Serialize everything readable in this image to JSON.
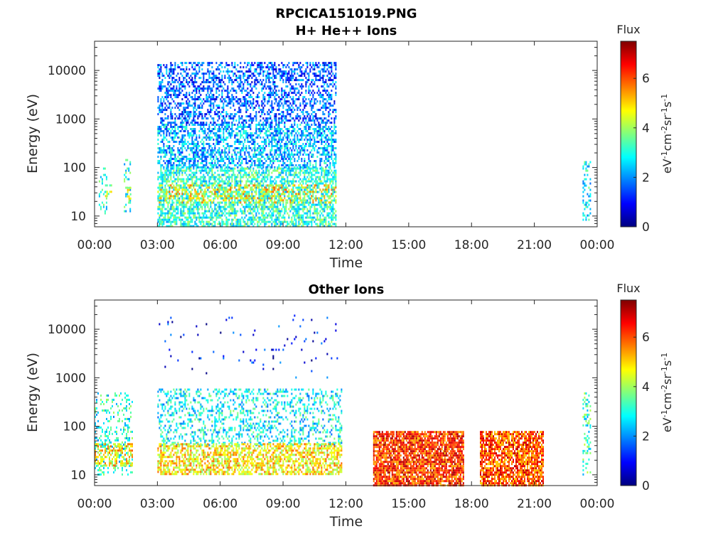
{
  "figure": {
    "title": "RPCICA151019.PNG"
  },
  "colormap": [
    "#00007f",
    "#0000ff",
    "#007fff",
    "#00ffff",
    "#7fff7f",
    "#ffff00",
    "#ff7f00",
    "#ff0000",
    "#7f0000"
  ],
  "chart_data": [
    {
      "type": "heatmap",
      "title": "H+ He++ Ions",
      "xlabel": "Time",
      "ylabel": "Energy (eV)",
      "x_ticks": [
        "00:00",
        "03:00",
        "06:00",
        "09:00",
        "12:00",
        "15:00",
        "18:00",
        "21:00",
        "00:00"
      ],
      "x_range_hours": [
        0,
        24
      ],
      "y_scale": "log",
      "y_ticks": [
        10,
        100,
        1000,
        10000
      ],
      "y_tick_labels": [
        "10",
        "100",
        "1000",
        "10000"
      ],
      "y_range": [
        6,
        40000
      ],
      "colorbar": {
        "title": "Flux",
        "label": "eV-1cm-2sr-1s-1",
        "label_parts": [
          {
            "t": "eV",
            "sup": false
          },
          {
            "t": "-1",
            "sup": true
          },
          {
            "t": "cm",
            "sup": false
          },
          {
            "t": "-2",
            "sup": true
          },
          {
            "t": "sr",
            "sup": false
          },
          {
            "t": "-1",
            "sup": true
          },
          {
            "t": "s",
            "sup": false
          },
          {
            "t": "-1",
            "sup": true
          }
        ],
        "range": [
          0,
          7.5
        ],
        "ticks": [
          0,
          2,
          4,
          6
        ],
        "tick_labels": [
          "0",
          "2",
          "4",
          "6"
        ]
      },
      "regions": [
        {
          "t0": 0.2,
          "t1": 0.6,
          "e0": 10,
          "e1": 100,
          "flux": 3.0,
          "density": 0.25
        },
        {
          "t0": 0.5,
          "t1": 0.8,
          "e0": 25,
          "e1": 45,
          "flux": 4.0,
          "density": 0.4
        },
        {
          "t0": 1.4,
          "t1": 1.7,
          "e0": 12,
          "e1": 150,
          "flux": 3.0,
          "density": 0.3
        },
        {
          "t0": 1.55,
          "t1": 1.75,
          "e0": 20,
          "e1": 40,
          "flux": 4.5,
          "density": 0.4
        },
        {
          "t0": 3.0,
          "t1": 11.5,
          "e0": 800,
          "e1": 15000,
          "flux": 1.6,
          "density": 0.45
        },
        {
          "t0": 3.0,
          "t1": 11.5,
          "e0": 100,
          "e1": 800,
          "flux": 2.3,
          "density": 0.55
        },
        {
          "t0": 3.0,
          "t1": 11.5,
          "e0": 6,
          "e1": 100,
          "flux": 3.1,
          "density": 0.6
        },
        {
          "t0": 3.0,
          "t1": 11.5,
          "e0": 20,
          "e1": 45,
          "flux": 4.8,
          "density": 0.3
        },
        {
          "t0": 23.3,
          "t1": 23.7,
          "e0": 8,
          "e1": 150,
          "flux": 2.8,
          "density": 0.25
        }
      ]
    },
    {
      "type": "heatmap",
      "title": "Other Ions",
      "xlabel": "Time",
      "ylabel": "Energy (eV)",
      "x_ticks": [
        "00:00",
        "03:00",
        "06:00",
        "09:00",
        "12:00",
        "15:00",
        "18:00",
        "21:00",
        "00:00"
      ],
      "x_range_hours": [
        0,
        24
      ],
      "y_scale": "log",
      "y_ticks": [
        10,
        100,
        1000,
        10000
      ],
      "y_tick_labels": [
        "10",
        "100",
        "1000",
        "10000"
      ],
      "y_range": [
        6,
        40000
      ],
      "colorbar": {
        "title": "Flux",
        "label": "eV-1cm-2sr-1s-1",
        "label_parts": [
          {
            "t": "eV",
            "sup": false
          },
          {
            "t": "-1",
            "sup": true
          },
          {
            "t": "cm",
            "sup": false
          },
          {
            "t": "-2",
            "sup": true
          },
          {
            "t": "sr",
            "sup": false
          },
          {
            "t": "-1",
            "sup": true
          },
          {
            "t": "s",
            "sup": false
          },
          {
            "t": "-1",
            "sup": true
          }
        ],
        "range": [
          0,
          7.5
        ],
        "ticks": [
          0,
          2,
          4,
          6
        ],
        "tick_labels": [
          "0",
          "2",
          "4",
          "6"
        ]
      },
      "regions": [
        {
          "t0": 0.0,
          "t1": 1.8,
          "e0": 10,
          "e1": 500,
          "flux": 3.0,
          "density": 0.25
        },
        {
          "t0": 0.0,
          "t1": 1.8,
          "e0": 15,
          "e1": 45,
          "flux": 4.8,
          "density": 0.5
        },
        {
          "t0": 3.0,
          "t1": 11.8,
          "e0": 40,
          "e1": 600,
          "flux": 2.8,
          "density": 0.3
        },
        {
          "t0": 3.0,
          "t1": 11.8,
          "e0": 10,
          "e1": 45,
          "flux": 4.8,
          "density": 0.6
        },
        {
          "t0": 3.0,
          "t1": 11.8,
          "e0": 1000,
          "e1": 20000,
          "flux": 1.0,
          "density": 0.02
        },
        {
          "t0": 13.3,
          "t1": 17.6,
          "e0": 6,
          "e1": 80,
          "flux": 6.2,
          "density": 0.85
        },
        {
          "t0": 18.4,
          "t1": 21.4,
          "e0": 6,
          "e1": 80,
          "flux": 6.0,
          "density": 0.8
        },
        {
          "t0": 23.3,
          "t1": 23.7,
          "e0": 10,
          "e1": 500,
          "flux": 3.2,
          "density": 0.3
        }
      ]
    }
  ]
}
